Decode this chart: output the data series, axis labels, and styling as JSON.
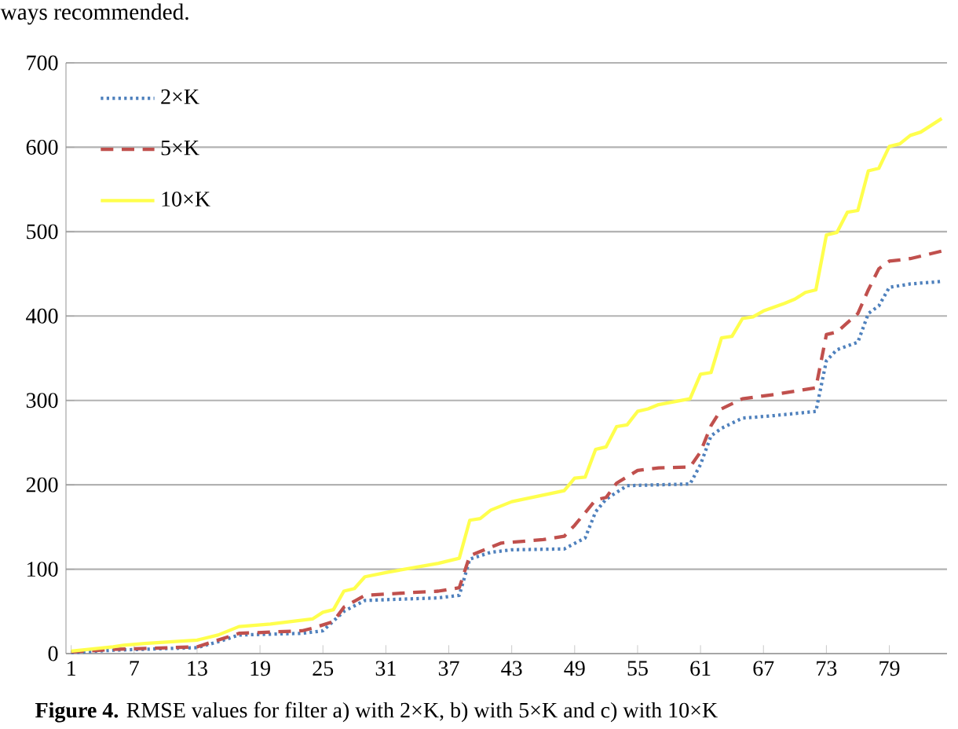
{
  "chart_data": {
    "type": "line",
    "xlim": [
      0.5,
      84.5
    ],
    "xticks": [
      1,
      7,
      13,
      19,
      25,
      31,
      37,
      43,
      49,
      55,
      61,
      67,
      73,
      79
    ],
    "ylim": [
      0,
      700
    ],
    "yticks": [
      0,
      100,
      200,
      300,
      400,
      500,
      600,
      700
    ],
    "grid": "y",
    "legend": "top left",
    "annotations": [
      "ways recommended.",
      "**Figure 4.** RMSE values for filter a) with 2×K, b) with 5×K and c) with 10×K"
    ],
    "series": [
      {
        "name": "2×K",
        "color": "#4f81bd",
        "line_style": "dotted",
        "x": [
          1,
          5,
          13,
          15,
          17,
          23,
          25,
          27,
          29,
          36,
          38,
          39,
          41,
          43,
          48,
          50,
          51,
          52,
          54,
          60,
          61,
          62,
          63,
          65,
          68,
          72,
          73,
          74,
          76,
          77,
          78,
          79,
          81,
          84
        ],
        "values": [
          1,
          4,
          7,
          14,
          22,
          24,
          27,
          50,
          63,
          66,
          69,
          112,
          120,
          123,
          124,
          137,
          168,
          183,
          199,
          201,
          224,
          258,
          267,
          279,
          282,
          287,
          347,
          360,
          369,
          403,
          412,
          434,
          438,
          441
        ]
      },
      {
        "name": "5×K",
        "color": "#c0504d",
        "line_style": "dashed",
        "x": [
          1,
          5,
          13,
          15,
          17,
          23,
          24,
          26,
          27,
          29,
          33,
          36,
          38,
          39,
          40,
          42,
          46,
          48,
          49,
          51,
          52,
          53,
          55,
          57,
          60,
          61,
          62,
          63,
          65,
          68,
          72,
          73,
          74,
          76,
          77,
          78,
          79,
          81,
          84
        ],
        "values": [
          2,
          5,
          8,
          16,
          24,
          27,
          30,
          38,
          55,
          69,
          72,
          74,
          78,
          116,
          121,
          131,
          135,
          139,
          152,
          182,
          185,
          202,
          217,
          220,
          221,
          239,
          270,
          290,
          302,
          307,
          315,
          378,
          381,
          403,
          431,
          456,
          465,
          468,
          477
        ]
      },
      {
        "name": "10×K",
        "color": "#ffff4d",
        "line_style": "solid",
        "x": [
          1,
          5,
          6,
          8,
          13,
          15,
          17,
          20,
          24,
          25,
          26,
          27,
          28,
          29,
          31,
          36,
          38,
          39,
          40,
          41,
          43,
          48,
          49,
          50,
          51,
          52,
          53,
          54,
          55,
          56,
          57,
          60,
          61,
          62,
          63,
          64,
          65,
          66,
          67,
          69,
          70,
          71,
          72,
          73,
          74,
          75,
          76,
          77,
          78,
          79,
          80,
          81,
          82,
          84
        ],
        "values": [
          3,
          8,
          10,
          12,
          16,
          22,
          32,
          35,
          41,
          49,
          52,
          74,
          77,
          91,
          96,
          107,
          113,
          158,
          160,
          170,
          180,
          193,
          208,
          209,
          242,
          245,
          269,
          271,
          287,
          290,
          295,
          302,
          331,
          333,
          374,
          376,
          397,
          399,
          406,
          415,
          420,
          428,
          431,
          496,
          499,
          523,
          525,
          572,
          575,
          601,
          604,
          614,
          618,
          634
        ]
      }
    ]
  }
}
